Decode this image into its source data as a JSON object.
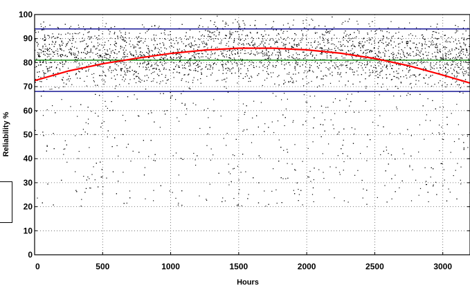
{
  "chart_data": {
    "type": "scatter",
    "title": "",
    "xlabel": "Hours",
    "ylabel": "Reliability %",
    "xlim": [
      0,
      3200
    ],
    "ylim": [
      0,
      100
    ],
    "x_ticks": [
      0,
      500,
      1000,
      1500,
      2000,
      2500,
      3000
    ],
    "y_ticks": [
      0,
      10,
      20,
      30,
      40,
      50,
      60,
      70,
      80,
      90,
      100
    ],
    "grid": true,
    "grid_style": "dotted",
    "points": {
      "count": 4200,
      "color": "#000000",
      "note_x_range": [
        0,
        3200
      ],
      "dense_band_y": [
        68,
        98
      ],
      "sparse_band_y": [
        20,
        68
      ]
    },
    "reference_lines": [
      {
        "y": 94,
        "color": "#00008b"
      },
      {
        "y": 81,
        "color": "#008000"
      },
      {
        "y": 68,
        "color": "#00008b"
      }
    ],
    "trend_curve": {
      "color": "#ff0000",
      "points": [
        [
          0,
          72.5
        ],
        [
          250,
          76.5
        ],
        [
          500,
          79.5
        ],
        [
          750,
          81.8
        ],
        [
          1000,
          83.8
        ],
        [
          1250,
          85.2
        ],
        [
          1500,
          86.0
        ],
        [
          1750,
          86.0
        ],
        [
          2000,
          85.3
        ],
        [
          2250,
          83.9
        ],
        [
          2500,
          81.7
        ],
        [
          2750,
          78.7
        ],
        [
          3000,
          74.8
        ],
        [
          3200,
          71.5
        ]
      ]
    }
  }
}
